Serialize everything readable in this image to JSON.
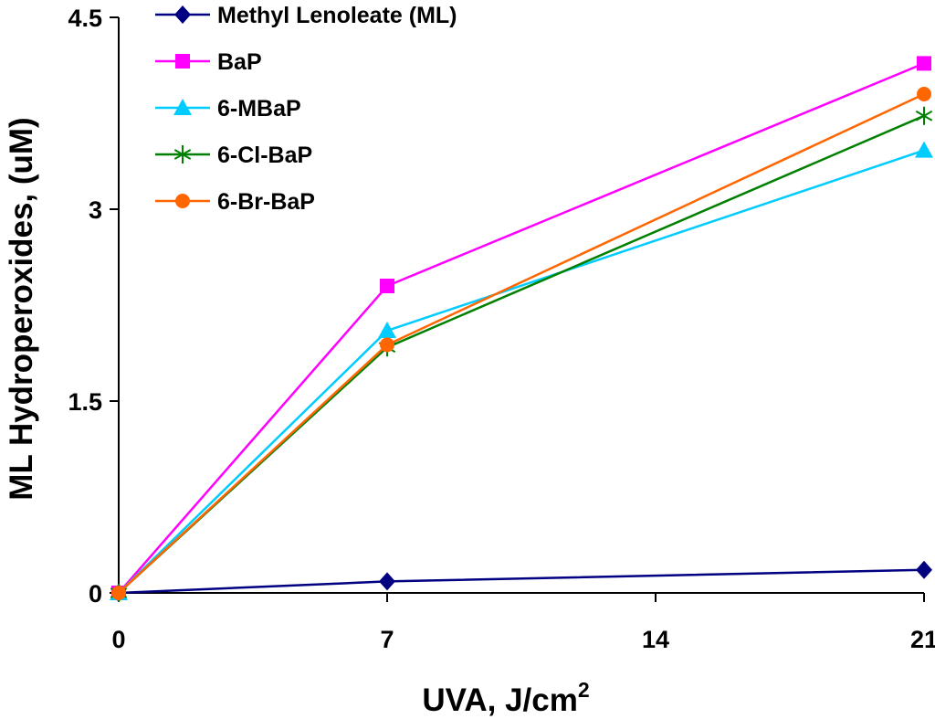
{
  "chart_data": {
    "type": "line",
    "title": "",
    "xlabel": "UVA, J/cm",
    "xlabel_sup": "2",
    "ylabel": "ML Hydroperoxides, (uM)",
    "x": [
      0,
      7,
      21
    ],
    "xlim": [
      0,
      21
    ],
    "xticks": [
      0,
      7,
      14,
      21
    ],
    "xtick_labels": [
      "0",
      "7",
      "14",
      "21"
    ],
    "ylim": [
      0,
      4.5
    ],
    "yticks": [
      0,
      1.5,
      3,
      4.5
    ],
    "ytick_labels": [
      "0",
      "1.5",
      "3",
      "4.5"
    ],
    "grid": false,
    "legend_position": "top-left",
    "series": [
      {
        "name": "Methyl Lenoleate (ML)",
        "values": [
          0,
          0.09,
          0.18
        ],
        "color": "#000080",
        "marker": "diamond"
      },
      {
        "name": "BaP",
        "values": [
          0,
          2.4,
          4.14
        ],
        "color": "#ff00ff",
        "marker": "square"
      },
      {
        "name": "6-MBaP",
        "values": [
          0,
          2.05,
          3.46
        ],
        "color": "#00ccff",
        "marker": "triangle"
      },
      {
        "name": "6-Cl-BaP",
        "values": [
          0,
          1.92,
          3.73
        ],
        "color": "#008000",
        "marker": "asterisk"
      },
      {
        "name": "6-Br-BaP",
        "values": [
          0,
          1.94,
          3.9
        ],
        "color": "#ff6600",
        "marker": "circle"
      }
    ]
  }
}
